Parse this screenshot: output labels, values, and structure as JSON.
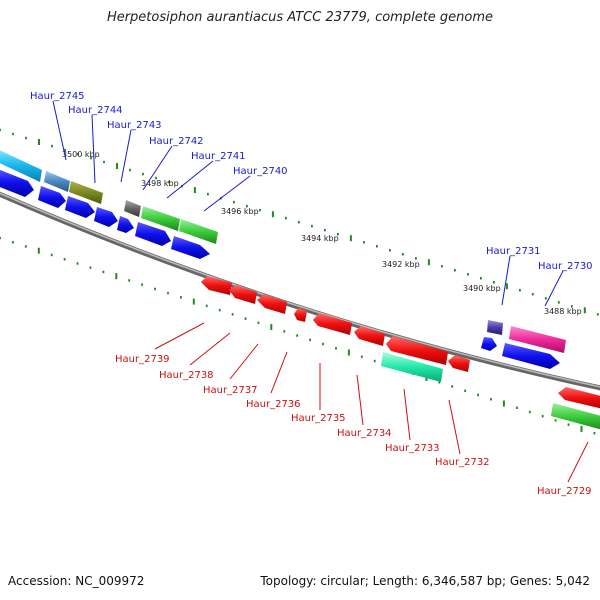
{
  "title": "Herpetosiphon aurantiacus ATCC 23779, complete genome",
  "footer": {
    "accession": "Accession: NC_009972",
    "info": "Topology: circular; Length: 6,346,587 bp; Genes: 5,042"
  },
  "ticks": [
    "3500 kbp",
    "3498 kbp",
    "3496 kbp",
    "3494 kbp",
    "3492 kbp",
    "3490 kbp",
    "3488 kbp"
  ],
  "genes_forward": [
    "Haur_2745",
    "Haur_2744",
    "Haur_2743",
    "Haur_2742",
    "Haur_2741",
    "Haur_2740",
    "Haur_2731",
    "Haur_2730"
  ],
  "genes_reverse": [
    "Haur_2739",
    "Haur_2738",
    "Haur_2737",
    "Haur_2736",
    "Haur_2735",
    "Haur_2734",
    "Haur_2733",
    "Haur_2732",
    "Haur_2729"
  ],
  "colors": {
    "forward_label": "#1a1acc",
    "reverse_label": "#cc1111",
    "cds_forward": "#1010ee",
    "cds_reverse": "#ee1010",
    "backbone": "#888888",
    "tick": "#1f8a1f"
  }
}
